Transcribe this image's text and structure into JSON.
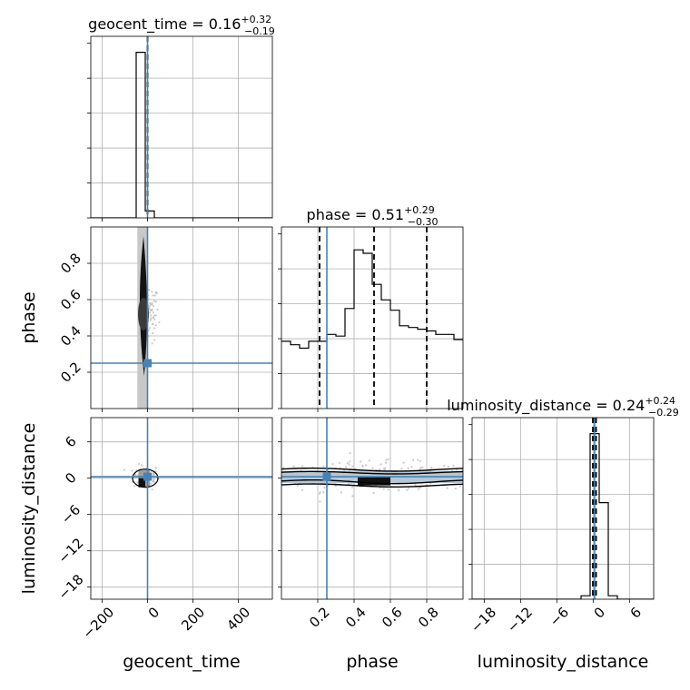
{
  "chart_data": {
    "type": "corner",
    "parameters": [
      "geocent_time",
      "phase",
      "luminosity_distance"
    ],
    "truth": {
      "geocent_time": 0,
      "phase": 0.25,
      "luminosity_distance": 0.24
    },
    "axis_labels": {
      "geocent_time": "geocent_time",
      "phase": "phase",
      "luminosity_distance": "luminosity_distance"
    },
    "ranges": {
      "geocent_time": [
        -250,
        550
      ],
      "phase": [
        0,
        1
      ],
      "luminosity_distance": [
        -20,
        10
      ]
    },
    "ticks": {
      "geocent_time": [
        -200,
        0,
        200,
        400
      ],
      "phase": [
        0.2,
        0.4,
        0.6,
        0.8
      ],
      "luminosity_distance": [
        -18,
        -12,
        -6,
        0,
        6
      ]
    },
    "tick_labels": {
      "geocent_time": [
        "−200",
        "0",
        "200",
        "400"
      ],
      "phase": [
        "0.2",
        "0.4",
        "0.6",
        "0.8"
      ],
      "luminosity_distance": [
        "−18",
        "−12",
        "−6",
        "0",
        "6"
      ]
    },
    "titles": [
      {
        "param": "geocent_time",
        "prefix": "geocent_time = 0.16",
        "sup": "+0.32",
        "sub": "−0.19"
      },
      {
        "param": "phase",
        "prefix": "phase = 0.51",
        "sup": "+0.29",
        "sub": "−0.30"
      },
      {
        "param": "luminosity_distance",
        "prefix": "luminosity_distance = 0.24",
        "sup": "+0.24",
        "sub": "−0.29"
      }
    ],
    "histograms": {
      "geocent_time": {
        "bin_edges": [
          -250,
          -210,
          -170,
          -130,
          -90,
          -50,
          -10,
          30,
          70,
          110,
          150,
          190,
          230,
          270,
          310,
          350,
          390,
          430,
          470,
          510,
          550
        ],
        "counts": [
          0,
          0,
          0,
          0,
          0,
          0.96,
          0.04,
          0,
          0,
          0,
          0,
          0,
          0,
          0,
          0,
          0,
          0,
          0,
          0,
          0
        ],
        "quantiles": [
          -0.03,
          0.16,
          0.48
        ]
      },
      "phase": {
        "bin_edges": [
          0,
          0.05,
          0.1,
          0.15,
          0.2,
          0.25,
          0.3,
          0.35,
          0.4,
          0.45,
          0.5,
          0.55,
          0.6,
          0.65,
          0.7,
          0.75,
          0.8,
          0.85,
          0.9,
          0.95,
          1.0
        ],
        "counts": [
          0.39,
          0.37,
          0.35,
          0.39,
          0.39,
          0.43,
          0.42,
          0.58,
          0.92,
          0.9,
          0.72,
          0.63,
          0.57,
          0.48,
          0.47,
          0.46,
          0.45,
          0.43,
          0.43,
          0.4
        ],
        "quantiles": [
          0.21,
          0.51,
          0.8
        ]
      },
      "luminosity_distance": {
        "bin_edges": [
          -20,
          -18.5,
          -17,
          -15.5,
          -14,
          -12.5,
          -11,
          -9.5,
          -8,
          -6.5,
          -5,
          -3.5,
          -2,
          -0.5,
          1,
          2.5,
          4,
          5.5,
          7,
          8.5,
          10
        ],
        "counts": [
          0,
          0,
          0,
          0,
          0,
          0,
          0,
          0,
          0,
          0,
          0,
          0,
          0.02,
          0.96,
          0.56,
          0.02,
          0,
          0,
          0,
          0
        ],
        "quantiles": [
          -0.05,
          0.24,
          0.48
        ]
      }
    },
    "colors": {
      "truth": "#4682b4",
      "line": "#000000",
      "grid": "#b0b0b0",
      "scatter": "#bdbdbd"
    },
    "grid": true
  }
}
